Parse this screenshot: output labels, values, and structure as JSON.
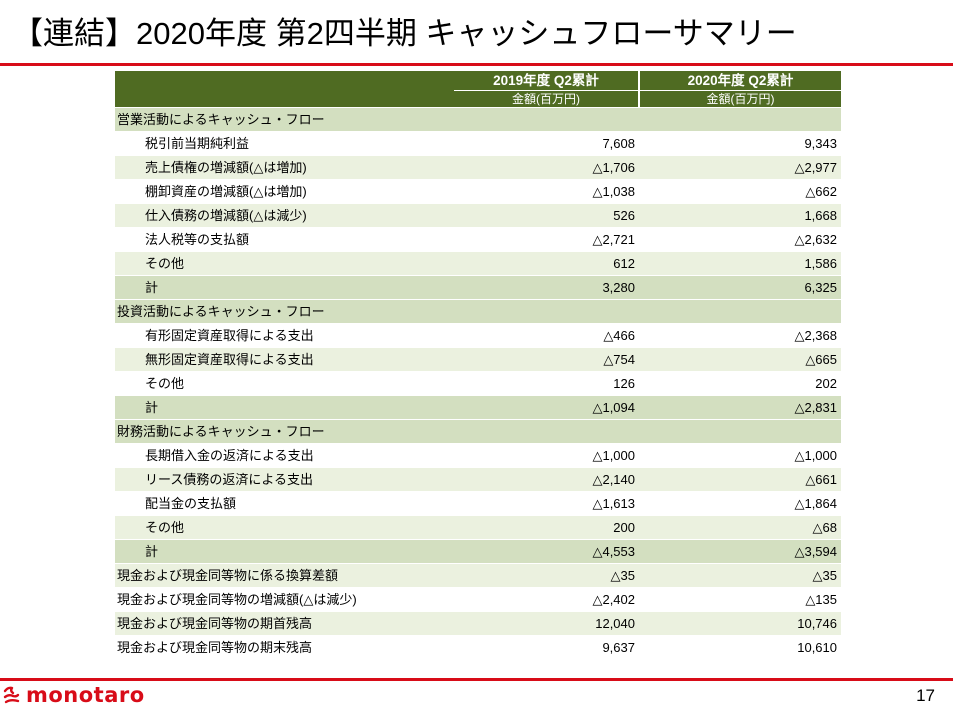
{
  "title": "【連結】2020年度 第2四半期 キャッシュフローサマリー",
  "table": {
    "headers": [
      "2019年度 Q2累計",
      "2020年度 Q2累計"
    ],
    "units": [
      "金額(百万円)",
      "金額(百万円)"
    ],
    "rows": [
      {
        "type": "section",
        "label": "営業活動によるキャッシュ・フロー"
      },
      {
        "type": "item",
        "label": "税引前当期純利益",
        "v2019": "7,608",
        "v2020": "9,343"
      },
      {
        "type": "item",
        "label": "売上債権の増減額(△は増加)",
        "v2019": "△1,706",
        "v2020": "△2,977"
      },
      {
        "type": "item",
        "label": "棚卸資産の増減額(△は増加)",
        "v2019": "△1,038",
        "v2020": "△662"
      },
      {
        "type": "item",
        "label": "仕入債務の増減額(△は減少)",
        "v2019": "526",
        "v2020": "1,668"
      },
      {
        "type": "item",
        "label": "法人税等の支払額",
        "v2019": "△2,721",
        "v2020": "△2,632"
      },
      {
        "type": "item",
        "label": "その他",
        "v2019": "612",
        "v2020": "1,586"
      },
      {
        "type": "item",
        "label": "計",
        "v2019": "3,280",
        "v2020": "6,325"
      },
      {
        "type": "section",
        "label": "投資活動によるキャッシュ・フロー"
      },
      {
        "type": "item",
        "label": "有形固定資産取得による支出",
        "v2019": "△466",
        "v2020": "△2,368"
      },
      {
        "type": "item",
        "label": "無形固定資産取得による支出",
        "v2019": "△754",
        "v2020": "△665"
      },
      {
        "type": "item",
        "label": "その他",
        "v2019": "126",
        "v2020": "202"
      },
      {
        "type": "item",
        "label": "計",
        "v2019": "△1,094",
        "v2020": "△2,831"
      },
      {
        "type": "section",
        "label": "財務活動によるキャッシュ・フロー"
      },
      {
        "type": "item",
        "label": "長期借入金の返済による支出",
        "v2019": "△1,000",
        "v2020": "△1,000"
      },
      {
        "type": "item",
        "label": "リース債務の返済による支出",
        "v2019": "△2,140",
        "v2020": "△661"
      },
      {
        "type": "item",
        "label": "配当金の支払額",
        "v2019": "△1,613",
        "v2020": "△1,864"
      },
      {
        "type": "item",
        "label": "その他",
        "v2019": "200",
        "v2020": "△68"
      },
      {
        "type": "item",
        "label": "計",
        "v2019": "△4,553",
        "v2020": "△3,594"
      },
      {
        "type": "total",
        "label": "現金および現金同等物に係る換算差額",
        "v2019": "△35",
        "v2020": "△35"
      },
      {
        "type": "total",
        "label": "現金および現金同等物の増減額(△は減少)",
        "v2019": "△2,402",
        "v2020": "△135"
      },
      {
        "type": "total",
        "label": "現金および現金同等物の期首残高",
        "v2019": "12,040",
        "v2020": "10,746"
      },
      {
        "type": "total",
        "label": "現金および現金同等物の期末残高",
        "v2019": "9,637",
        "v2020": "10,610"
      }
    ]
  },
  "footer": {
    "logo_icon": "monotaro-logo-mark",
    "logo_text": "monotaro",
    "page_number": "17"
  },
  "colors": {
    "accent_red": "#d80c18",
    "header_green": "#4f6b22",
    "section_green": "#d3dfc0",
    "row_light_green": "#ebf1df"
  }
}
